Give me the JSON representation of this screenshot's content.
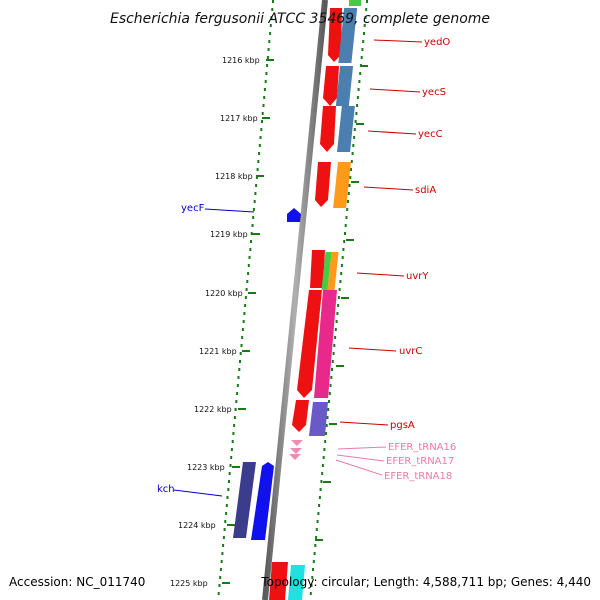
{
  "title": "Escherichia fergusonii ATCC 35469, complete genome",
  "footer": {
    "accession": "Accession: NC_011740",
    "summary": "Topology: circular; Length: 4,588,711 bp; Genes: 4,440"
  },
  "kbp_labels": [
    "1216 kbp",
    "1217 kbp",
    "1218 kbp",
    "1219 kbp",
    "1220 kbp",
    "1221 kbp",
    "1222 kbp",
    "1223 kbp",
    "1224 kbp",
    "1225 kbp"
  ],
  "colors": {
    "red": "#ee1111",
    "steelblue": "#4a7fb0",
    "orange": "#ff9a1a",
    "green": "#44cc44",
    "magenta": "#e8288a",
    "slate": "#6a5ac8",
    "navy": "#3c3c8c",
    "blue": "#1111ee",
    "cyan": "#22e0e0",
    "pink": "#f08cb4",
    "tick_green": "#1a7a1a",
    "label_red": "#cc0000",
    "label_blue": "#0000cc",
    "label_pink": "#e87aa8"
  },
  "genes": {
    "yedO": "yedO",
    "yecS": "yecS",
    "yecC": "yecC",
    "sdiA": "sdiA",
    "uvrY": "uvrY",
    "uvrC": "uvrC",
    "pgsA": "pgsA",
    "efer16": "EFER_tRNA16",
    "efer17": "EFER_tRNA17",
    "efer18": "EFER_tRNA18",
    "yecF": "yecF",
    "kch": "kch"
  }
}
